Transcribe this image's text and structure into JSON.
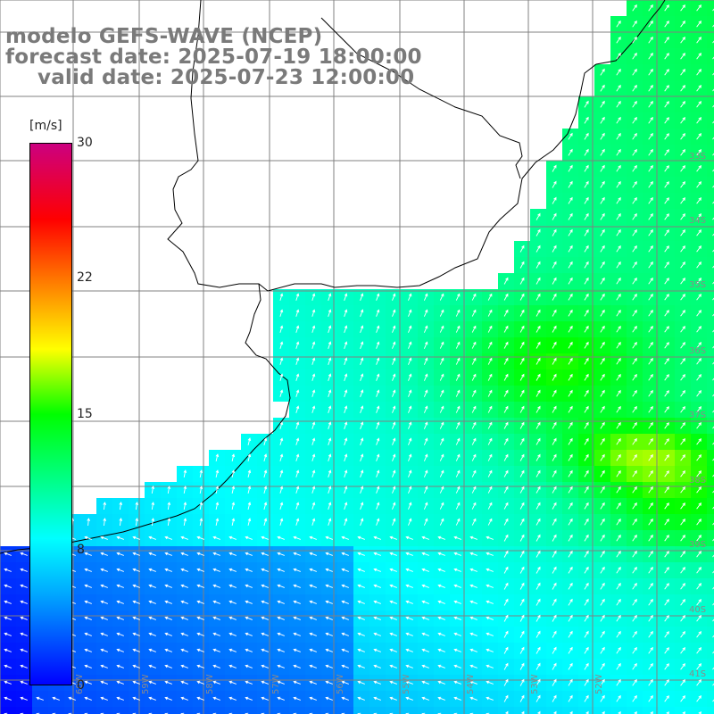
{
  "title": {
    "line1": "modelo GEFS-WAVE (NCEP)",
    "line2": "forecast date: 2025-07-19 18:00:00",
    "line3": "valid date: 2025-07-23 12:00:00"
  },
  "colorbar": {
    "unit": "[m/s]",
    "ticks": [
      "30",
      "22",
      "15",
      "8",
      "0"
    ],
    "colors": [
      "#0000ff",
      "#00aaff",
      "#00ffff",
      "#00ff00",
      "#ffff00",
      "#ff8000",
      "#ff0000",
      "#cc0080"
    ]
  },
  "lat_labels": [
    "33S",
    "34S",
    "35S",
    "36S",
    "37S",
    "38S",
    "39S",
    "40S",
    "41S"
  ],
  "lon_labels": [
    "60W",
    "59W",
    "58W",
    "57W",
    "56W",
    "55W",
    "54W",
    "53W",
    "52W"
  ],
  "colors": {
    "land": "#ffffff",
    "grid": "#808080",
    "coast": "#000000",
    "title": "#7a7a7a",
    "arrows": "#ffffff"
  }
}
